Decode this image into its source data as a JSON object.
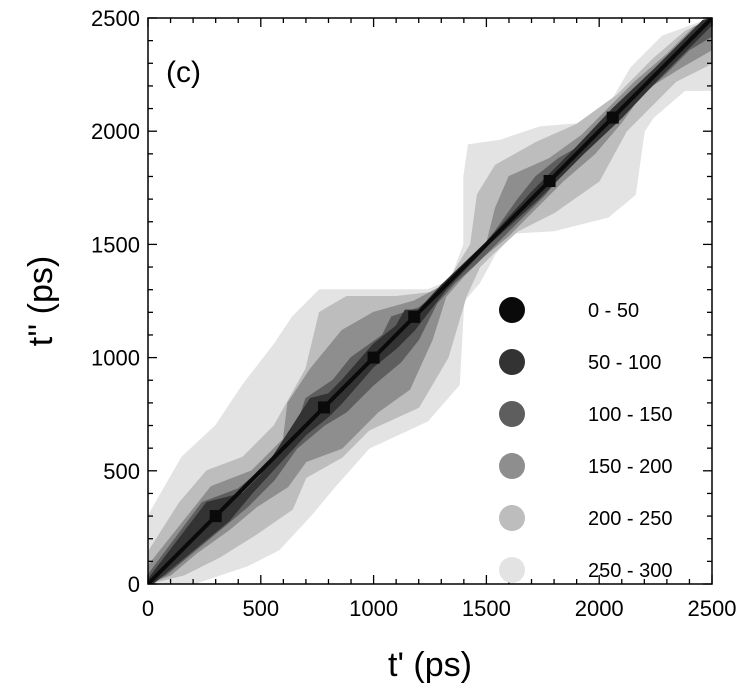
{
  "chart_data": {
    "type": "heatmap",
    "panel_label": "(c)",
    "xlabel": "t' (ps)",
    "ylabel": "t'' (ps)",
    "xlim": [
      0,
      2500
    ],
    "ylim": [
      0,
      2500
    ],
    "x_ticks": [
      "0",
      "500",
      "1000",
      "1500",
      "2000",
      "2500"
    ],
    "y_ticks": [
      "0",
      "500",
      "1000",
      "1500",
      "2000",
      "2500"
    ],
    "grid": false,
    "legend_position": "lower-right",
    "legend": [
      {
        "label": "0 - 50",
        "color": "#0a0a0a"
      },
      {
        "label": "50 - 100",
        "color": "#333333"
      },
      {
        "label": "100 - 150",
        "color": "#5e5e5e"
      },
      {
        "label": "150 - 200",
        "color": "#8e8e8e"
      },
      {
        "label": "200 - 250",
        "color": "#bdbdbd"
      },
      {
        "label": "250 - 300",
        "color": "#e3e3e3"
      }
    ],
    "regions": [
      {
        "level": 5,
        "polygon": [
          [
            0,
            0
          ],
          [
            0,
            300
          ],
          [
            150,
            560
          ],
          [
            300,
            700
          ],
          [
            420,
            880
          ],
          [
            560,
            1060
          ],
          [
            640,
            1180
          ],
          [
            700,
            1240
          ],
          [
            760,
            1300
          ],
          [
            1100,
            1300
          ],
          [
            1240,
            1300
          ],
          [
            1340,
            1340
          ],
          [
            1400,
            1500
          ],
          [
            1400,
            1800
          ],
          [
            1420,
            1940
          ],
          [
            1560,
            1960
          ],
          [
            1740,
            2020
          ],
          [
            2000,
            2040
          ],
          [
            2140,
            2280
          ],
          [
            2280,
            2420
          ],
          [
            2500,
            2500
          ],
          [
            2500,
            2180
          ],
          [
            2380,
            2180
          ],
          [
            2240,
            2060
          ],
          [
            2200,
            2000
          ],
          [
            2160,
            1720
          ],
          [
            2040,
            1620
          ],
          [
            1800,
            1560
          ],
          [
            1620,
            1550
          ],
          [
            1540,
            1460
          ],
          [
            1470,
            1330
          ],
          [
            1400,
            1250
          ],
          [
            1380,
            880
          ],
          [
            1240,
            720
          ],
          [
            980,
            600
          ],
          [
            820,
            420
          ],
          [
            720,
            300
          ],
          [
            580,
            150
          ],
          [
            440,
            80
          ],
          [
            200,
            0
          ]
        ]
      },
      {
        "level": 4,
        "polygon": [
          [
            0,
            0
          ],
          [
            0,
            140
          ],
          [
            140,
            360
          ],
          [
            260,
            500
          ],
          [
            420,
            560
          ],
          [
            560,
            700
          ],
          [
            700,
            950
          ],
          [
            760,
            1200
          ],
          [
            880,
            1270
          ],
          [
            1100,
            1270
          ],
          [
            1280,
            1290
          ],
          [
            1350,
            1370
          ],
          [
            1430,
            1500
          ],
          [
            1460,
            1720
          ],
          [
            1540,
            1850
          ],
          [
            1720,
            1950
          ],
          [
            1900,
            2030
          ],
          [
            2080,
            2160
          ],
          [
            2240,
            2320
          ],
          [
            2380,
            2440
          ],
          [
            2500,
            2500
          ],
          [
            2500,
            2300
          ],
          [
            2340,
            2220
          ],
          [
            2220,
            2100
          ],
          [
            2120,
            2000
          ],
          [
            2000,
            1780
          ],
          [
            1800,
            1640
          ],
          [
            1640,
            1560
          ],
          [
            1530,
            1460
          ],
          [
            1470,
            1400
          ],
          [
            1410,
            1270
          ],
          [
            1330,
            1000
          ],
          [
            1200,
            780
          ],
          [
            980,
            680
          ],
          [
            860,
            560
          ],
          [
            700,
            470
          ],
          [
            640,
            330
          ],
          [
            480,
            220
          ],
          [
            320,
            120
          ],
          [
            160,
            40
          ]
        ]
      },
      {
        "level": 3,
        "polygon": [
          [
            0,
            0
          ],
          [
            0,
            80
          ],
          [
            160,
            280
          ],
          [
            280,
            430
          ],
          [
            460,
            500
          ],
          [
            600,
            640
          ],
          [
            620,
            800
          ],
          [
            720,
            950
          ],
          [
            860,
            1120
          ],
          [
            1000,
            1200
          ],
          [
            1180,
            1250
          ],
          [
            1330,
            1330
          ],
          [
            1430,
            1420
          ],
          [
            1500,
            1500
          ],
          [
            1540,
            1660
          ],
          [
            1600,
            1800
          ],
          [
            1780,
            1880
          ],
          [
            1920,
            1980
          ],
          [
            2040,
            2100
          ],
          [
            2160,
            2220
          ],
          [
            2300,
            2340
          ],
          [
            2420,
            2460
          ],
          [
            2500,
            2500
          ],
          [
            2500,
            2360
          ],
          [
            2360,
            2280
          ],
          [
            2200,
            2180
          ],
          [
            2100,
            2040
          ],
          [
            1980,
            1900
          ],
          [
            1840,
            1780
          ],
          [
            1700,
            1640
          ],
          [
            1600,
            1540
          ],
          [
            1480,
            1440
          ],
          [
            1400,
            1360
          ],
          [
            1320,
            1270
          ],
          [
            1260,
            1080
          ],
          [
            1160,
            860
          ],
          [
            1020,
            760
          ],
          [
            860,
            600
          ],
          [
            700,
            540
          ],
          [
            620,
            430
          ],
          [
            480,
            340
          ],
          [
            360,
            240
          ],
          [
            220,
            140
          ],
          [
            100,
            40
          ]
        ]
      },
      {
        "level": 2,
        "polygon": [
          [
            0,
            0
          ],
          [
            0,
            40
          ],
          [
            120,
            200
          ],
          [
            240,
            360
          ],
          [
            400,
            420
          ],
          [
            520,
            520
          ],
          [
            660,
            700
          ],
          [
            700,
            820
          ],
          [
            820,
            900
          ],
          [
            900,
            1000
          ],
          [
            1040,
            1100
          ],
          [
            1080,
            1180
          ],
          [
            1200,
            1220
          ],
          [
            1300,
            1300
          ],
          [
            1380,
            1380
          ],
          [
            1460,
            1460
          ],
          [
            1540,
            1560
          ],
          [
            1640,
            1700
          ],
          [
            1720,
            1800
          ],
          [
            1820,
            1880
          ],
          [
            1960,
            1960
          ],
          [
            2040,
            2060
          ],
          [
            2120,
            2140
          ],
          [
            2220,
            2240
          ],
          [
            2320,
            2340
          ],
          [
            2420,
            2440
          ],
          [
            2500,
            2500
          ],
          [
            2500,
            2420
          ],
          [
            2400,
            2360
          ],
          [
            2300,
            2260
          ],
          [
            2180,
            2150
          ],
          [
            2080,
            2050
          ],
          [
            1960,
            1940
          ],
          [
            1860,
            1840
          ],
          [
            1760,
            1720
          ],
          [
            1660,
            1620
          ],
          [
            1560,
            1520
          ],
          [
            1460,
            1420
          ],
          [
            1360,
            1330
          ],
          [
            1280,
            1240
          ],
          [
            1200,
            1080
          ],
          [
            1120,
            980
          ],
          [
            1000,
            880
          ],
          [
            880,
            760
          ],
          [
            780,
            700
          ],
          [
            660,
            600
          ],
          [
            560,
            460
          ],
          [
            440,
            340
          ],
          [
            320,
            240
          ],
          [
            200,
            140
          ],
          [
            80,
            40
          ]
        ]
      },
      {
        "level": 1,
        "polygon": [
          [
            0,
            0
          ],
          [
            0,
            20
          ],
          [
            260,
            360
          ],
          [
            420,
            400
          ],
          [
            500,
            480
          ],
          [
            720,
            820
          ],
          [
            800,
            840
          ],
          [
            860,
            900
          ],
          [
            1000,
            1060
          ],
          [
            1100,
            1140
          ],
          [
            1140,
            1210
          ],
          [
            1200,
            1210
          ],
          [
            1300,
            1320
          ],
          [
            1500,
            1510
          ],
          [
            1700,
            1730
          ],
          [
            1900,
            1930
          ],
          [
            2060,
            2100
          ],
          [
            2250,
            2280
          ],
          [
            2460,
            2490
          ],
          [
            2500,
            2500
          ],
          [
            2500,
            2470
          ],
          [
            2280,
            2250
          ],
          [
            2100,
            2060
          ],
          [
            1930,
            1900
          ],
          [
            1730,
            1700
          ],
          [
            1510,
            1500
          ],
          [
            1320,
            1300
          ],
          [
            1180,
            1120
          ],
          [
            1100,
            1040
          ],
          [
            1000,
            960
          ],
          [
            860,
            800
          ],
          [
            800,
            740
          ],
          [
            700,
            660
          ],
          [
            460,
            400
          ],
          [
            360,
            280
          ],
          [
            20,
            0
          ]
        ]
      }
    ],
    "diagonal_points": [
      {
        "t": 300,
        "level": 0
      },
      {
        "t": 780,
        "level": 0
      },
      {
        "t": 1000,
        "level": 0
      },
      {
        "t": 1180,
        "level": 0
      },
      {
        "t": 1780,
        "level": 0
      },
      {
        "t": 2060,
        "level": 0
      }
    ]
  }
}
